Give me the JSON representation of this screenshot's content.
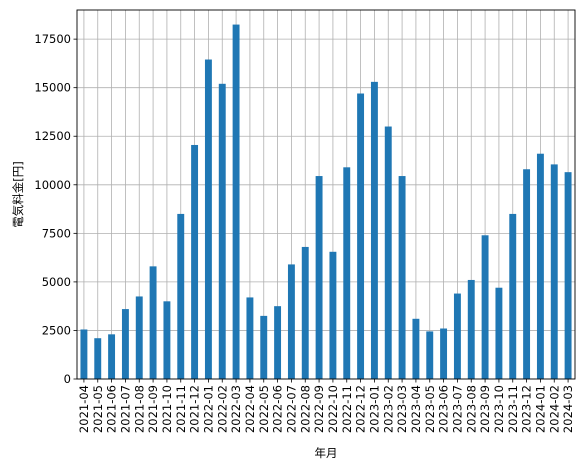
{
  "chart_data": {
    "type": "bar",
    "title": "",
    "xlabel": "年月",
    "ylabel": "電気料金[円]",
    "categories": [
      "2021-04",
      "2021-05",
      "2021-06",
      "2021-07",
      "2021-08",
      "2021-09",
      "2021-10",
      "2021-11",
      "2021-12",
      "2022-01",
      "2022-02",
      "2022-03",
      "2022-04",
      "2022-05",
      "2022-06",
      "2022-07",
      "2022-08",
      "2022-09",
      "2022-10",
      "2022-11",
      "2022-12",
      "2023-01",
      "2023-02",
      "2023-03",
      "2023-04",
      "2023-05",
      "2023-06",
      "2023-07",
      "2023-08",
      "2023-09",
      "2023-10",
      "2023-11",
      "2023-12",
      "2024-01",
      "2024-02",
      "2024-03"
    ],
    "values": [
      2550,
      2100,
      2300,
      3600,
      4250,
      5800,
      4000,
      8500,
      12050,
      16450,
      15200,
      18250,
      4200,
      3250,
      3750,
      5900,
      6800,
      10450,
      6550,
      10900,
      14700,
      15300,
      13000,
      10450,
      3100,
      2450,
      2600,
      4400,
      5100,
      7400,
      4700,
      8500,
      10800,
      11600,
      11050,
      10650
    ],
    "yticks": [
      0,
      2500,
      5000,
      7500,
      10000,
      12500,
      15000,
      17500
    ],
    "ylim": [
      0,
      19000
    ],
    "grid": true,
    "bar_color": "#1f77b4"
  }
}
